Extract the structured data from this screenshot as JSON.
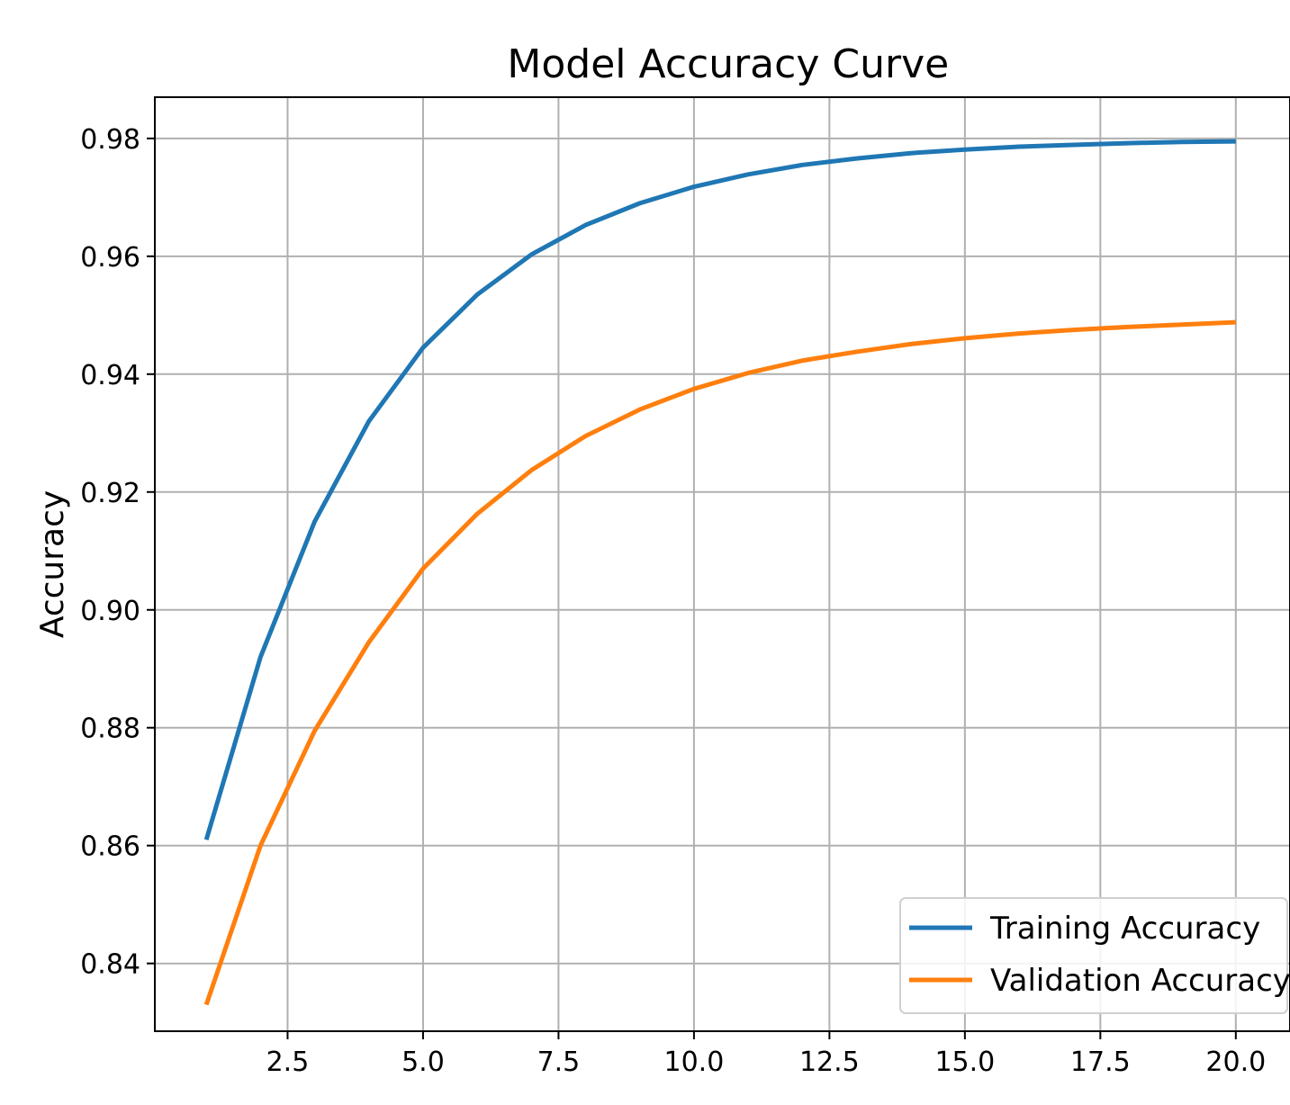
{
  "chart_data": {
    "type": "line",
    "title": "Model Accuracy Curve",
    "xlabel": "",
    "ylabel": "Accuracy",
    "xlim": [
      0.05,
      21.0
    ],
    "ylim": [
      0.8285,
      0.987
    ],
    "xticks": [
      2.5,
      5.0,
      7.5,
      10.0,
      12.5,
      15.0,
      17.5,
      20.0
    ],
    "xtick_labels": [
      "2.5",
      "5.0",
      "7.5",
      "10.0",
      "12.5",
      "15.0",
      "17.5",
      "20.0"
    ],
    "yticks": [
      0.84,
      0.86,
      0.88,
      0.9,
      0.92,
      0.94,
      0.96,
      0.98
    ],
    "ytick_labels": [
      "0.84",
      "0.86",
      "0.88",
      "0.90",
      "0.92",
      "0.94",
      "0.96",
      "0.98"
    ],
    "grid": true,
    "legend_position": "lower-right",
    "x": [
      1,
      2,
      3,
      4,
      5,
      6,
      7,
      8,
      9,
      10,
      11,
      12,
      13,
      14,
      15,
      16,
      17,
      18,
      19,
      20
    ],
    "series": [
      {
        "name": "Training Accuracy",
        "color": "#1f77b4",
        "values": [
          0.861,
          0.892,
          0.915,
          0.932,
          0.9445,
          0.9535,
          0.9603,
          0.9653,
          0.969,
          0.9718,
          0.9739,
          0.9755,
          0.9766,
          0.9775,
          0.9781,
          0.9786,
          0.9789,
          0.9792,
          0.9794,
          0.9795
        ]
      },
      {
        "name": "Validation Accuracy",
        "color": "#ff7f0e",
        "values": [
          0.833,
          0.86,
          0.8795,
          0.8945,
          0.907,
          0.9163,
          0.9237,
          0.9295,
          0.934,
          0.9375,
          0.9402,
          0.9423,
          0.9438,
          0.9451,
          0.9461,
          0.9469,
          0.9475,
          0.948,
          0.9484,
          0.9488
        ]
      }
    ]
  }
}
